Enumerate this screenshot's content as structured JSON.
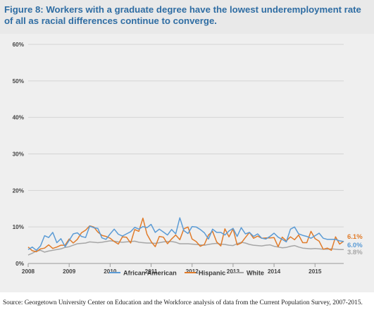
{
  "title": "Figure 8: Workers with a graduate degree have the lowest underemployment rate of all as racial differences continue to converge.",
  "source": "Source: Georgetown University Center on Education and the Workforce analysis of data from the Current Population Survey, 2007-2015.",
  "colors": {
    "title": "#2f6da3",
    "grid": "#d4d4d4",
    "tick_text": "#444444"
  },
  "chart_data": {
    "type": "line",
    "title": "Figure 8: Workers with a graduate degree have the lowest underemployment rate of all as racial differences continue to converge.",
    "xlabel": "",
    "ylabel": "",
    "x_ticks": [
      "2008",
      "2009",
      "2010",
      "2011",
      "2012",
      "2013",
      "2014",
      "2015"
    ],
    "y_ticks": [
      "0%",
      "10%",
      "20%",
      "30%",
      "40%",
      "50%",
      "60%"
    ],
    "xlim": [
      2008.0,
      2015.7
    ],
    "ylim": [
      0,
      60
    ],
    "grid": true,
    "legend_position": "bottom",
    "x": [
      2008.0,
      2008.1,
      2008.2,
      2008.3,
      2008.4,
      2008.5,
      2008.6,
      2008.7,
      2008.8,
      2008.9,
      2009.0,
      2009.1,
      2009.2,
      2009.3,
      2009.4,
      2009.5,
      2009.6,
      2009.7,
      2009.8,
      2009.9,
      2010.0,
      2010.1,
      2010.2,
      2010.3,
      2010.4,
      2010.5,
      2010.6,
      2010.7,
      2010.8,
      2010.9,
      2011.0,
      2011.1,
      2011.2,
      2011.3,
      2011.4,
      2011.5,
      2011.6,
      2011.7,
      2011.8,
      2011.9,
      2012.0,
      2012.1,
      2012.2,
      2012.3,
      2012.4,
      2012.5,
      2012.6,
      2012.7,
      2012.8,
      2012.9,
      2013.0,
      2013.1,
      2013.2,
      2013.3,
      2013.4,
      2013.5,
      2013.6,
      2013.7,
      2013.8,
      2013.9,
      2014.0,
      2014.1,
      2014.2,
      2014.3,
      2014.4,
      2014.5,
      2014.6,
      2014.7,
      2014.8,
      2014.9,
      2015.0,
      2015.1,
      2015.2,
      2015.3,
      2015.4,
      2015.5,
      2015.6,
      2015.7
    ],
    "series": [
      {
        "name": "African American",
        "color": "#5b9bd5",
        "end_label": "6.0%",
        "values": [
          3.8,
          4.5,
          3.6,
          4.8,
          7.6,
          7.1,
          8.5,
          5.7,
          6.8,
          4.6,
          6.3,
          8.1,
          8.4,
          7.4,
          7.1,
          10.2,
          9.8,
          9.6,
          7.0,
          6.6,
          8.1,
          9.4,
          8.0,
          7.5,
          8.1,
          8.7,
          9.9,
          9.4,
          10.1,
          9.8,
          10.7,
          8.5,
          9.4,
          8.6,
          7.8,
          9.3,
          8.1,
          12.5,
          9.0,
          8.2,
          10.1,
          10.0,
          9.3,
          8.4,
          6.7,
          9.4,
          8.5,
          8.5,
          7.8,
          8.9,
          9.6,
          7.4,
          9.8,
          8.1,
          8.5,
          7.4,
          8.1,
          6.9,
          6.7,
          7.4,
          8.3,
          7.2,
          6.6,
          5.9,
          9.4,
          10.0,
          8.1,
          7.7,
          7.4,
          6.9,
          7.6,
          8.3,
          6.9,
          6.6,
          6.6,
          6.6,
          6.2,
          6.0
        ]
      },
      {
        "name": "Hispanic",
        "color": "#e07b2a",
        "end_label": "6.1%",
        "values": [
          4.5,
          3.5,
          3.2,
          4.0,
          4.2,
          5.1,
          4.1,
          4.5,
          5.0,
          5.0,
          6.7,
          5.6,
          6.6,
          8.4,
          9.1,
          10.3,
          10.0,
          8.6,
          7.7,
          7.4,
          6.9,
          6.0,
          5.3,
          7.3,
          7.2,
          5.6,
          9.3,
          8.8,
          12.4,
          8.0,
          6.0,
          4.6,
          7.4,
          7.2,
          5.4,
          6.7,
          7.8,
          6.5,
          9.5,
          10.0,
          6.7,
          6.0,
          4.7,
          5.2,
          7.8,
          8.8,
          5.9,
          4.8,
          9.5,
          7.3,
          9.5,
          5.1,
          5.6,
          7.1,
          8.5,
          6.9,
          7.5,
          6.9,
          7.0,
          7.0,
          7.1,
          4.6,
          7.2,
          6.2,
          7.3,
          6.5,
          7.8,
          5.7,
          5.7,
          8.8,
          6.8,
          6.1,
          3.9,
          4.2,
          3.6,
          7.3,
          5.3,
          6.1
        ]
      },
      {
        "name": "White",
        "color": "#a6a6a6",
        "end_label": "3.8%",
        "values": [
          2.3,
          2.8,
          3.4,
          3.6,
          3.1,
          3.4,
          3.6,
          3.8,
          4.0,
          4.4,
          4.6,
          5.0,
          5.4,
          5.5,
          5.6,
          5.9,
          5.8,
          5.7,
          5.8,
          6.0,
          6.2,
          6.1,
          5.9,
          5.8,
          5.9,
          6.0,
          6.1,
          5.8,
          5.7,
          5.6,
          5.6,
          5.5,
          5.7,
          5.9,
          6.0,
          6.0,
          5.8,
          5.4,
          5.4,
          5.4,
          5.3,
          5.2,
          5.1,
          5.0,
          5.2,
          5.4,
          5.5,
          5.3,
          5.2,
          5.0,
          4.9,
          5.4,
          5.8,
          5.6,
          5.2,
          5.0,
          4.9,
          4.8,
          5.0,
          5.1,
          4.7,
          4.5,
          4.3,
          4.4,
          4.7,
          4.9,
          4.5,
          4.2,
          4.1,
          4.0,
          4.1,
          4.0,
          3.9,
          3.9,
          4.0,
          3.9,
          3.8,
          3.8
        ]
      }
    ]
  }
}
